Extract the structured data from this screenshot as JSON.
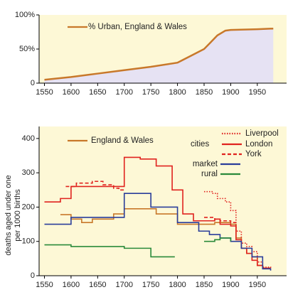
{
  "chart_data": [
    {
      "type": "area",
      "xlim": [
        1540,
        2005
      ],
      "xticks": [
        1550,
        1600,
        1650,
        1700,
        1750,
        1800,
        1850,
        1900,
        1950
      ],
      "ylim": [
        0,
        100
      ],
      "yticks": [
        0,
        {
          "value": 50,
          "label": "50%"
        },
        {
          "value": 100,
          "label": "100%"
        }
      ],
      "background": "#fdf8d6",
      "fill": "#e6e2f3",
      "series": [
        {
          "name": "% Urban, England & Wales",
          "color": "#c8782a",
          "x": [
            1550,
            1600,
            1650,
            1700,
            1750,
            1800,
            1825,
            1850,
            1860,
            1875,
            1890,
            1900,
            1950,
            1980
          ],
          "values": [
            5,
            9,
            14,
            19,
            24,
            30,
            40,
            50,
            58,
            70,
            77,
            78,
            79,
            80
          ]
        }
      ]
    },
    {
      "type": "line",
      "step": true,
      "xlim": [
        1540,
        2005
      ],
      "xticks": [
        1550,
        1600,
        1650,
        1700,
        1750,
        1800,
        1850,
        1900,
        1950
      ],
      "ylim": [
        0,
        435
      ],
      "yticks": [
        0,
        100,
        200,
        300,
        400
      ],
      "ylabel": [
        "deaths aged under one",
        "per 1000 births"
      ],
      "background": "#fdf8d6",
      "legend_group_label": "cities",
      "series": [
        {
          "name": "England & Wales",
          "color": "#c8782a",
          "x": [
            1580,
            1600,
            1620,
            1640,
            1680,
            1700,
            1760,
            1800,
            1850,
            1870,
            1900,
            1910,
            1920,
            1930,
            1940,
            1950,
            1960,
            1975
          ],
          "values": [
            178,
            165,
            155,
            165,
            180,
            195,
            180,
            150,
            150,
            155,
            150,
            110,
            80,
            65,
            55,
            30,
            22,
            22
          ]
        },
        {
          "name": "Liverpool",
          "color": "#e0231f",
          "dash": "dotted",
          "x": [
            1850,
            1865,
            1875,
            1890,
            1900,
            1910,
            1920,
            1930,
            1940,
            1950,
            1960,
            1975
          ],
          "values": [
            245,
            240,
            225,
            215,
            190,
            130,
            95,
            85,
            70,
            40,
            25,
            22
          ]
        },
        {
          "name": "London",
          "color": "#e0231f",
          "x": [
            1550,
            1580,
            1600,
            1700,
            1730,
            1760,
            1790,
            1810,
            1830,
            1850,
            1870,
            1880,
            1900,
            1910,
            1920,
            1930,
            1940,
            1950,
            1960,
            1975
          ],
          "values": [
            215,
            225,
            260,
            345,
            340,
            320,
            250,
            180,
            160,
            160,
            165,
            150,
            145,
            105,
            80,
            65,
            45,
            30,
            22,
            22
          ]
        },
        {
          "name": "York",
          "color": "#e0231f",
          "dash": "dashed",
          "x": [
            1590,
            1610,
            1640,
            1660,
            1680,
            1690,
            1700,
            1850,
            1870,
            1880,
            1900,
            1910
          ],
          "values": [
            260,
            270,
            275,
            265,
            255,
            250,
            null,
            170,
            165,
            160,
            155,
            155
          ]
        },
        {
          "name": "market",
          "color": "#2a3d9a",
          "x": [
            1550,
            1600,
            1650,
            1700,
            1750,
            1800,
            1840,
            1860,
            1880,
            1900,
            1920,
            1940,
            1960,
            1975
          ],
          "values": [
            150,
            170,
            170,
            240,
            200,
            155,
            130,
            120,
            110,
            100,
            80,
            55,
            20,
            15
          ]
        },
        {
          "name": "rural",
          "color": "#2a8a3a",
          "x": [
            1550,
            1600,
            1650,
            1700,
            1750,
            1795,
            1850,
            1870,
            1880,
            1900
          ],
          "values": [
            90,
            85,
            85,
            80,
            55,
            null,
            100,
            105,
            110,
            100
          ]
        }
      ]
    }
  ]
}
